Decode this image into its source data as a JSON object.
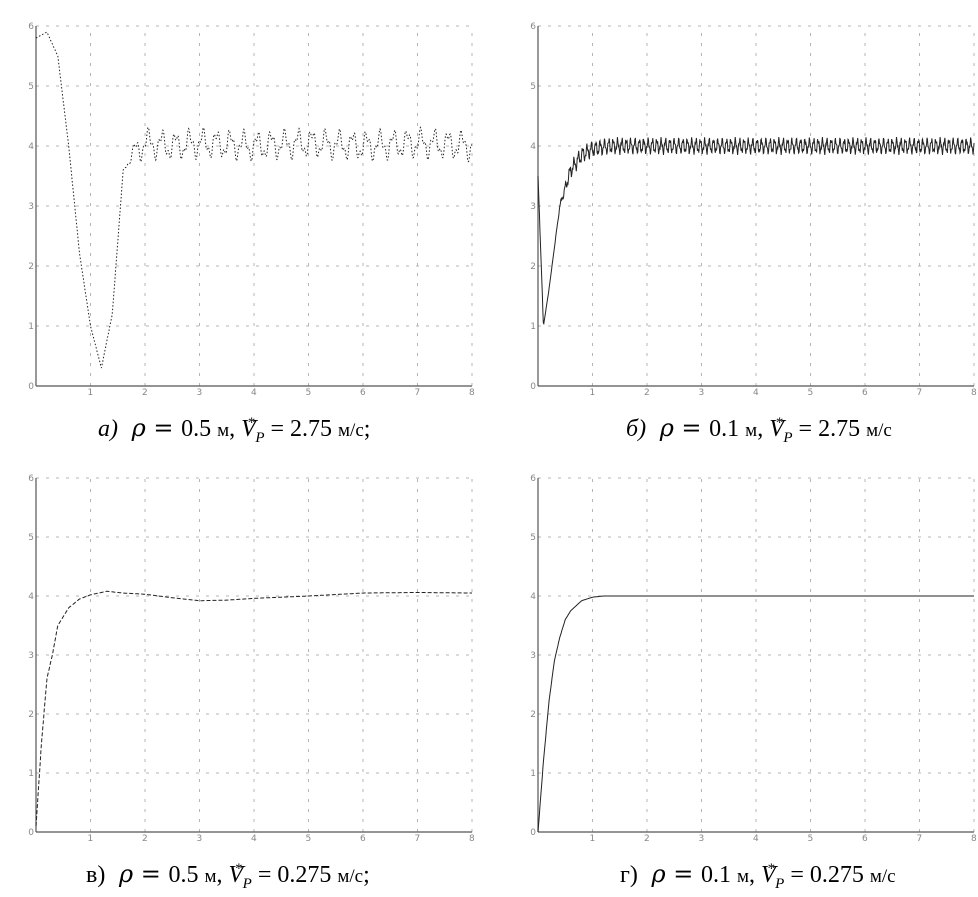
{
  "chart_data": [
    {
      "id": "a",
      "type": "line",
      "caption": {
        "label": "а)",
        "rho": "0.5",
        "v": "2.75",
        "unit_rho": "м",
        "unit_v": "м/с",
        "end": ";"
      },
      "xlim": [
        0,
        8
      ],
      "ylim": [
        0,
        6
      ],
      "x_ticks": [
        "",
        "1",
        "2",
        "3",
        "4",
        "5",
        "6",
        "7",
        "8"
      ],
      "y_ticks": [
        "0",
        "1",
        "2",
        "3",
        "4",
        "5",
        "6"
      ],
      "y_title": "",
      "x_title": "",
      "grid": true,
      "series": [
        {
          "style": "dotted",
          "kind": "oscillating",
          "x": [
            0,
            0.2,
            0.4,
            0.6,
            0.8,
            1.0,
            1.2,
            1.4,
            1.6,
            1.8,
            2.0,
            2.5,
            3,
            4,
            5,
            6,
            7,
            8
          ],
          "y": [
            5.8,
            5.9,
            5.5,
            4.0,
            2.2,
            1.0,
            0.3,
            1.2,
            3.6,
            3.9,
            4.05,
            4.0,
            4.05,
            4.0,
            4.05,
            4.0,
            4.05,
            4.0
          ],
          "osc_from": 1.6,
          "osc_amp": 0.18,
          "osc_period": 0.25
        }
      ]
    },
    {
      "id": "b",
      "type": "line",
      "caption": {
        "label": "б)",
        "rho": "0.1",
        "v": "2.75",
        "unit_rho": "м",
        "unit_v": "м/с",
        "end": ""
      },
      "xlim": [
        0,
        8
      ],
      "ylim": [
        0,
        6
      ],
      "x_ticks": [
        "",
        "1",
        "2",
        "3",
        "4",
        "5",
        "6",
        "7",
        "8"
      ],
      "y_ticks": [
        "0",
        "1",
        "2",
        "3",
        "4",
        "5",
        "6"
      ],
      "y_title": "",
      "x_title": "",
      "grid": true,
      "series": [
        {
          "style": "solid",
          "kind": "oscillating",
          "x": [
            0,
            0.1,
            0.2,
            0.4,
            0.6,
            0.8,
            1.0,
            1.3,
            2,
            3,
            4,
            5,
            6,
            7,
            8
          ],
          "y": [
            3.5,
            1.0,
            1.6,
            3.0,
            3.6,
            3.85,
            3.95,
            4.0,
            4.0,
            4.0,
            4.0,
            4.0,
            4.0,
            4.0,
            4.0
          ],
          "osc_from": 0.3,
          "osc_amp": 0.1,
          "osc_period": 0.08
        }
      ]
    },
    {
      "id": "v",
      "type": "line",
      "caption": {
        "label": "в)",
        "rho": "0.5",
        "v": "0.275",
        "unit_rho": "м",
        "unit_v": "м/с",
        "end": ";"
      },
      "xlim": [
        0,
        8
      ],
      "ylim": [
        0,
        6
      ],
      "x_ticks": [
        "",
        "1",
        "2",
        "3",
        "4",
        "5",
        "6",
        "7",
        "8"
      ],
      "y_ticks": [
        "0",
        "1",
        "2",
        "3",
        "4",
        "5",
        "6"
      ],
      "y_title": "",
      "x_title": "",
      "grid": true,
      "series": [
        {
          "style": "dashed",
          "kind": "smooth",
          "x": [
            0,
            0.1,
            0.2,
            0.3,
            0.4,
            0.6,
            0.8,
            1.0,
            1.3,
            1.6,
            2.0,
            2.5,
            3.0,
            3.5,
            4.0,
            5.0,
            6.0,
            7.0,
            8.0
          ],
          "y": [
            0.1,
            1.5,
            2.6,
            3.0,
            3.5,
            3.8,
            3.95,
            4.02,
            4.08,
            4.05,
            4.03,
            3.97,
            3.92,
            3.93,
            3.96,
            4.0,
            4.05,
            4.06,
            4.05
          ],
          "osc_from": 0,
          "osc_amp": 0,
          "osc_period": 1
        }
      ]
    },
    {
      "id": "g",
      "type": "line",
      "caption": {
        "label": "г)",
        "rho": "0.1",
        "v": "0.275",
        "unit_rho": "м",
        "unit_v": "м/с",
        "end": ""
      },
      "xlim": [
        0,
        8
      ],
      "ylim": [
        0,
        6
      ],
      "x_ticks": [
        "",
        "1",
        "2",
        "3",
        "4",
        "5",
        "6",
        "7",
        "8"
      ],
      "y_ticks": [
        "0",
        "1",
        "2",
        "3",
        "4",
        "5",
        "6"
      ],
      "y_title": "",
      "x_title": "",
      "grid": true,
      "series": [
        {
          "style": "solid",
          "kind": "smooth",
          "x": [
            0,
            0.1,
            0.2,
            0.3,
            0.4,
            0.5,
            0.6,
            0.8,
            1.0,
            1.2,
            2,
            3,
            4,
            5,
            6,
            7,
            8
          ],
          "y": [
            0.0,
            1.2,
            2.2,
            2.9,
            3.3,
            3.6,
            3.75,
            3.92,
            3.98,
            4.0,
            4.0,
            4.0,
            4.0,
            4.0,
            4.0,
            4.0,
            4.0
          ],
          "osc_from": 0,
          "osc_amp": 0,
          "osc_period": 1
        }
      ]
    }
  ],
  "colors": {
    "grid": "#b5b5b5",
    "axis": "#555555",
    "line": "#222222"
  }
}
